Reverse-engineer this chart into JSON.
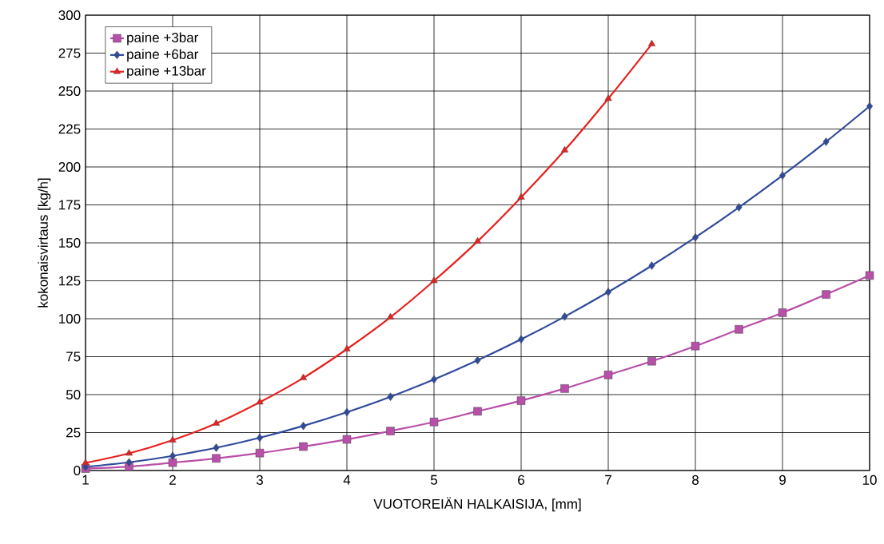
{
  "chart_data": {
    "type": "line",
    "xlabel": "VUOTOREIÄN HALKAISIJA, [mm]",
    "ylabel": "kokonaisvirtaus [kg/h]",
    "x": [
      1,
      1.5,
      2,
      2.5,
      3,
      3.5,
      4,
      4.5,
      5,
      5.5,
      6,
      6.5,
      7,
      7.5,
      8,
      8.5,
      9,
      9.5,
      10
    ],
    "series": [
      {
        "name": "paine +3bar",
        "color": "#b84fa8",
        "marker": "square",
        "values": [
          1.3,
          2.6,
          5.2,
          8,
          11.5,
          15.8,
          20.5,
          26,
          32,
          39,
          46,
          54,
          63,
          72,
          82,
          93,
          104,
          116,
          128.5
        ]
      },
      {
        "name": "paine +6bar",
        "color": "#2f4a9c",
        "marker": "diamond",
        "values": [
          2.4,
          5.4,
          9.6,
          15,
          21.6,
          29.4,
          38.4,
          48.6,
          60,
          72.6,
          86.4,
          101.4,
          117.6,
          135,
          153.6,
          173.4,
          194.4,
          216.6,
          240
        ]
      },
      {
        "name": "paine +13bar",
        "color": "#e8201e",
        "marker": "triangle",
        "values": [
          5,
          11.3,
          20,
          31,
          45,
          61,
          80,
          101,
          125,
          151,
          180,
          211,
          245,
          281,
          null,
          null,
          null,
          null,
          null
        ]
      }
    ],
    "xlim": [
      1,
      10
    ],
    "ylim": [
      0,
      300
    ],
    "xticks": [
      1,
      2,
      3,
      4,
      5,
      6,
      7,
      8,
      9,
      10
    ],
    "yticks": [
      0,
      25,
      50,
      75,
      100,
      125,
      150,
      175,
      200,
      225,
      250,
      275,
      300
    ],
    "grid": true,
    "legend": "top left",
    "line_style": "solid"
  }
}
